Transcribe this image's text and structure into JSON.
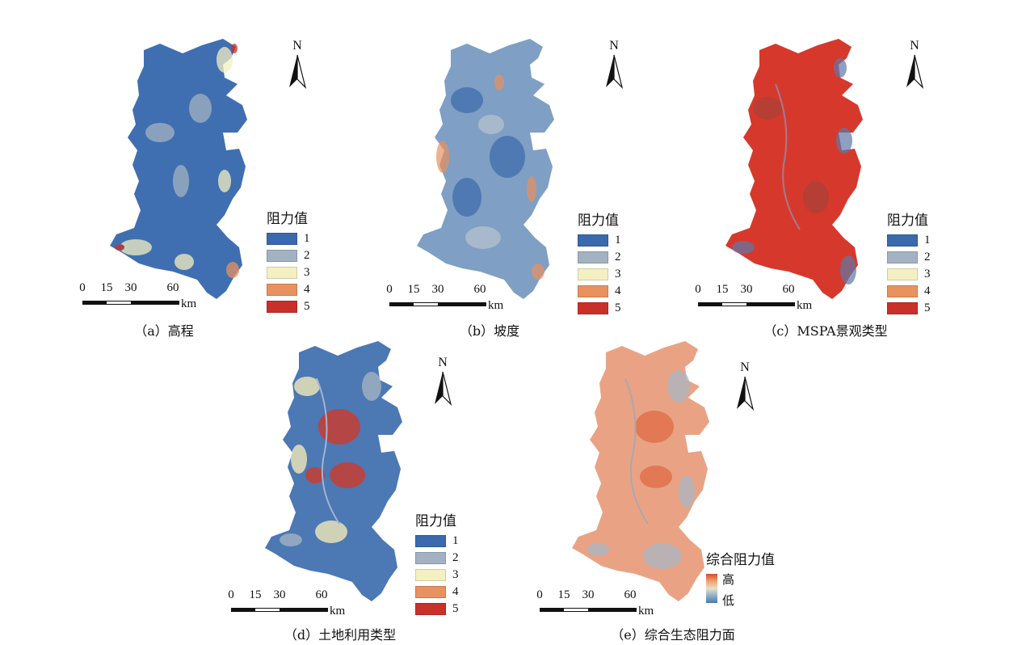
{
  "panels": [
    {
      "id": "a",
      "caption": "（a）高程",
      "legend_title": "阻力值",
      "classes": [
        "1",
        "2",
        "3",
        "4",
        "5"
      ],
      "scale_ticks": [
        "0",
        "15",
        "30",
        "60"
      ],
      "scale_unit": "km",
      "north_label": "N",
      "base_color": "#3f6fb0",
      "accent_colors": [
        "#9fb3c6",
        "#f2ecc0"
      ]
    },
    {
      "id": "b",
      "caption": "（b）坡度",
      "legend_title": "阻力值",
      "classes": [
        "1",
        "2",
        "3",
        "4",
        "5"
      ],
      "scale_ticks": [
        "0",
        "15",
        "30",
        "60"
      ],
      "scale_unit": "km",
      "north_label": "N",
      "base_color": "#7f9fc4",
      "accent_colors": [
        "#b9c4cf",
        "#e9a07a"
      ]
    },
    {
      "id": "c",
      "caption": "（c）MSPA景观类型",
      "legend_title": "阻力值",
      "classes": [
        "1",
        "2",
        "3",
        "4",
        "5"
      ],
      "scale_ticks": [
        "0",
        "15",
        "30",
        "60"
      ],
      "scale_unit": "km",
      "north_label": "N",
      "base_color": "#d7382c",
      "accent_colors": [
        "#a8413a",
        "#5f78a8"
      ]
    },
    {
      "id": "d",
      "caption": "（d）土地利用类型",
      "legend_title": "阻力值",
      "classes": [
        "1",
        "2",
        "3",
        "4",
        "5"
      ],
      "scale_ticks": [
        "0",
        "15",
        "30",
        "60"
      ],
      "scale_unit": "km",
      "north_label": "N",
      "base_color": "#4c78b4",
      "accent_colors": [
        "#f1e9b8",
        "#cf3a2a"
      ]
    },
    {
      "id": "e",
      "caption": "（e）综合生态阻力面",
      "legend_title": "综合阻力值",
      "gradient_high": "高",
      "gradient_low": "低",
      "scale_ticks": [
        "0",
        "15",
        "30",
        "60"
      ],
      "scale_unit": "km",
      "north_label": "N",
      "base_color": "#e9a384",
      "accent_colors": [
        "#a9b6c4",
        "#e06a45"
      ]
    }
  ],
  "class_colors": [
    "#3a69ad",
    "#a3b2c2",
    "#f4f0c2",
    "#e8925f",
    "#c9302a"
  ]
}
